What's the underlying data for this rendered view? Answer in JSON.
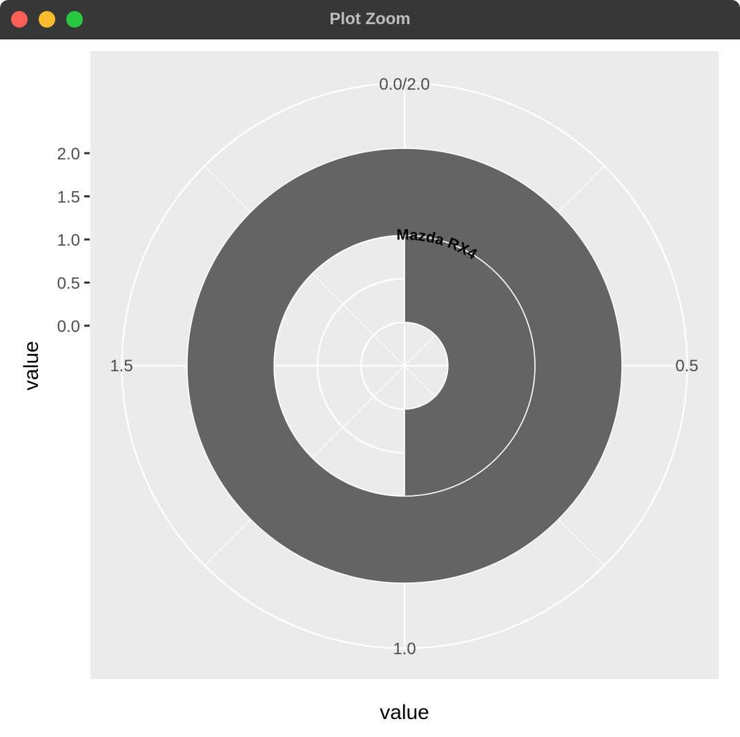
{
  "window": {
    "title": "Plot Zoom"
  },
  "chart_data": {
    "type": "pie",
    "coord": "polar",
    "theta_axis": {
      "ticks": [
        "0.0/2.0",
        "0.5",
        "1.0",
        "1.5"
      ],
      "limits": [
        0,
        2
      ]
    },
    "r_axis": {
      "ticks": [
        "0.0",
        "0.5",
        "1.0",
        "1.5",
        "2.0"
      ]
    },
    "xlabel": "value",
    "ylabel": "value",
    "annotation": "Mazda RX4",
    "bars": [
      {
        "r_min": 0.5,
        "r_max": 1.5,
        "theta_start": 0,
        "theta_end": 1.0
      },
      {
        "r_min": 1.5,
        "r_max": 2.5,
        "theta_start": 0,
        "theta_end": 2.0
      }
    ],
    "colors": {
      "panel": "#ebebeb",
      "grid": "#ffffff",
      "bar": "#646464",
      "tick_text": "#4d4d4d",
      "title_text": "#000000"
    }
  }
}
